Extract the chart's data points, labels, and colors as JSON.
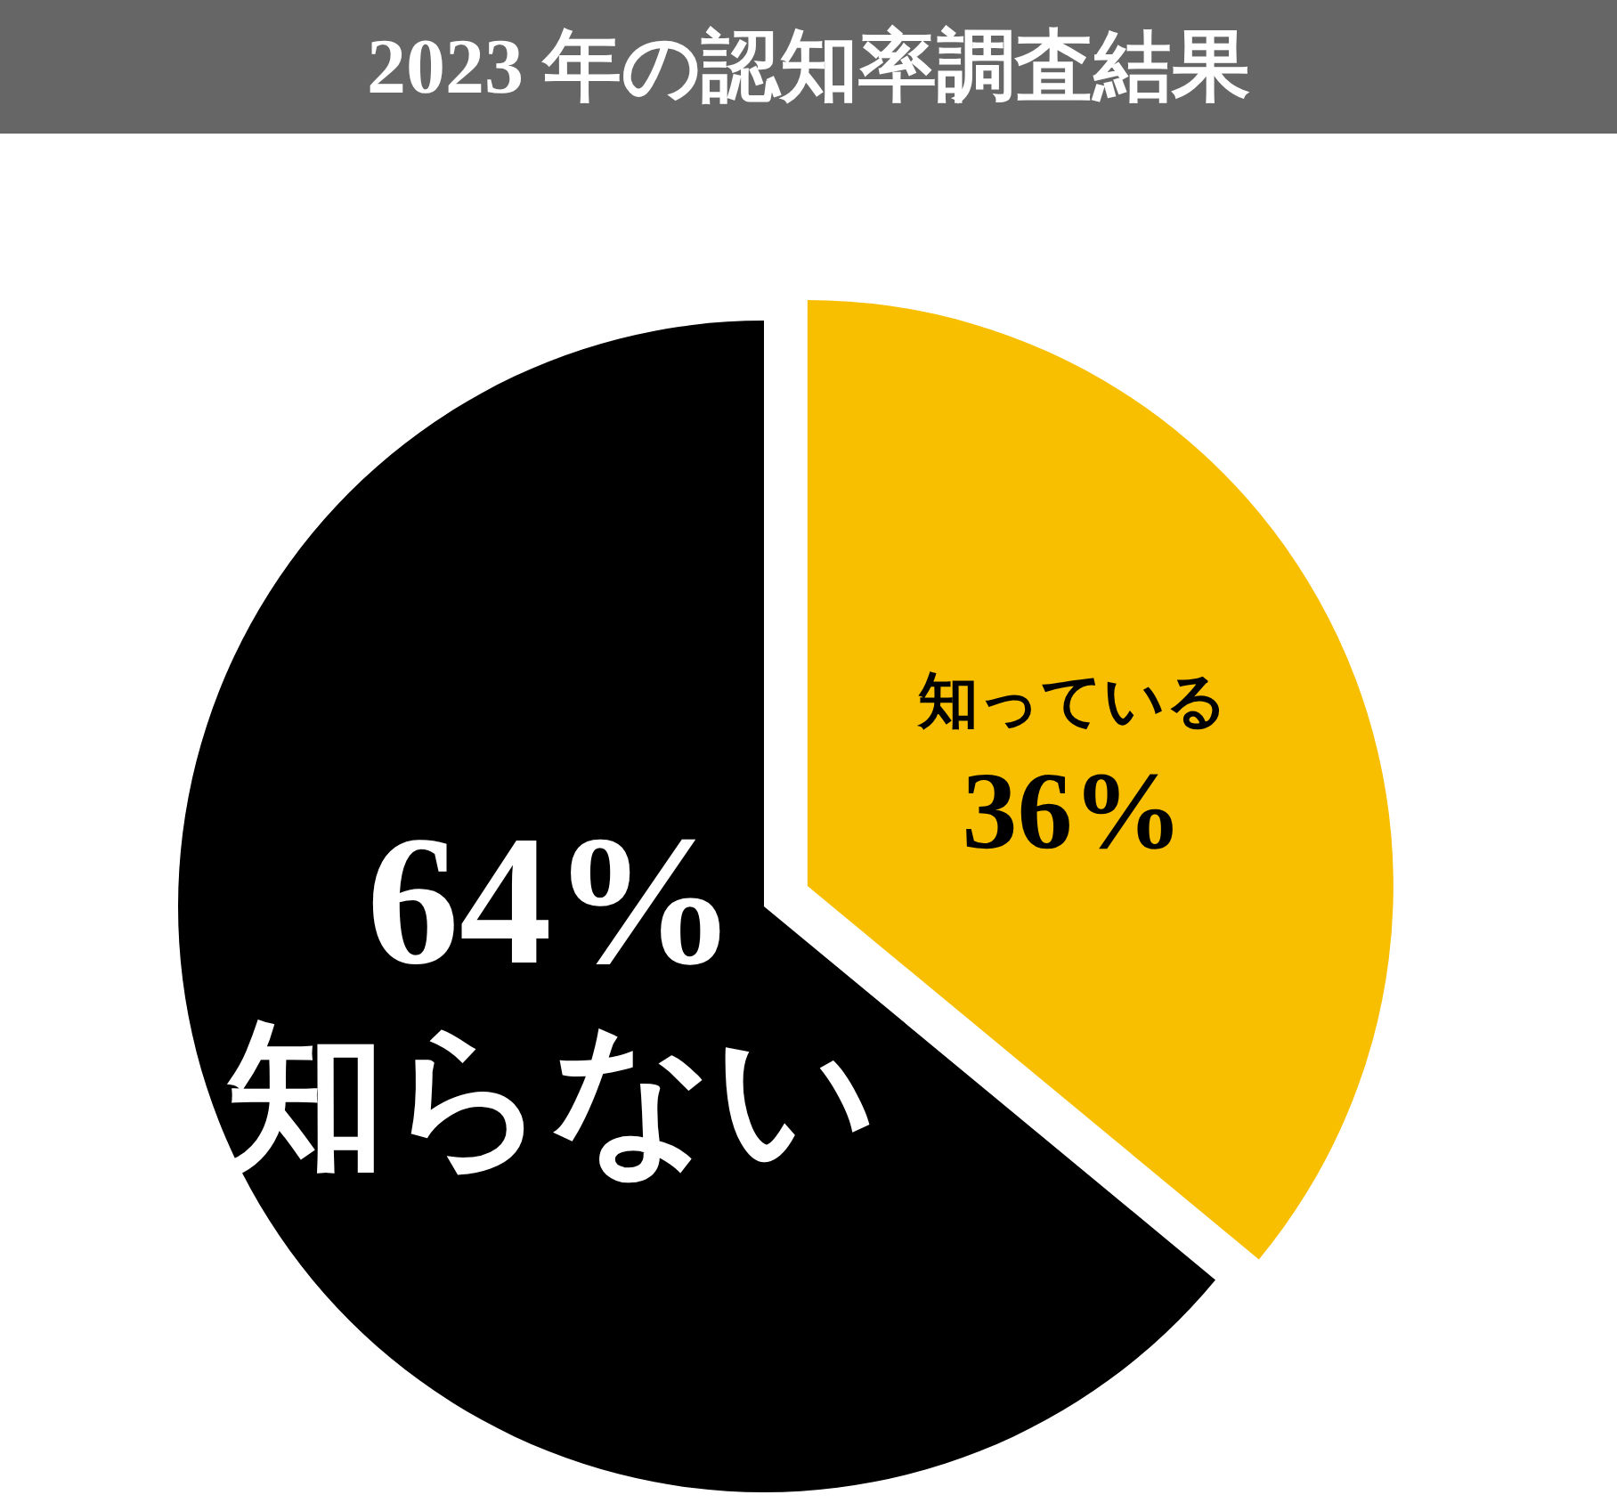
{
  "chart_data": {
    "type": "pie",
    "title": "2023 年の認知率調査結果",
    "categories": [
      "知っている",
      "知らない"
    ],
    "values": [
      36,
      64
    ],
    "colors": [
      "#f8bf00",
      "#000000"
    ],
    "value_labels": [
      "36%",
      "64%"
    ]
  }
}
